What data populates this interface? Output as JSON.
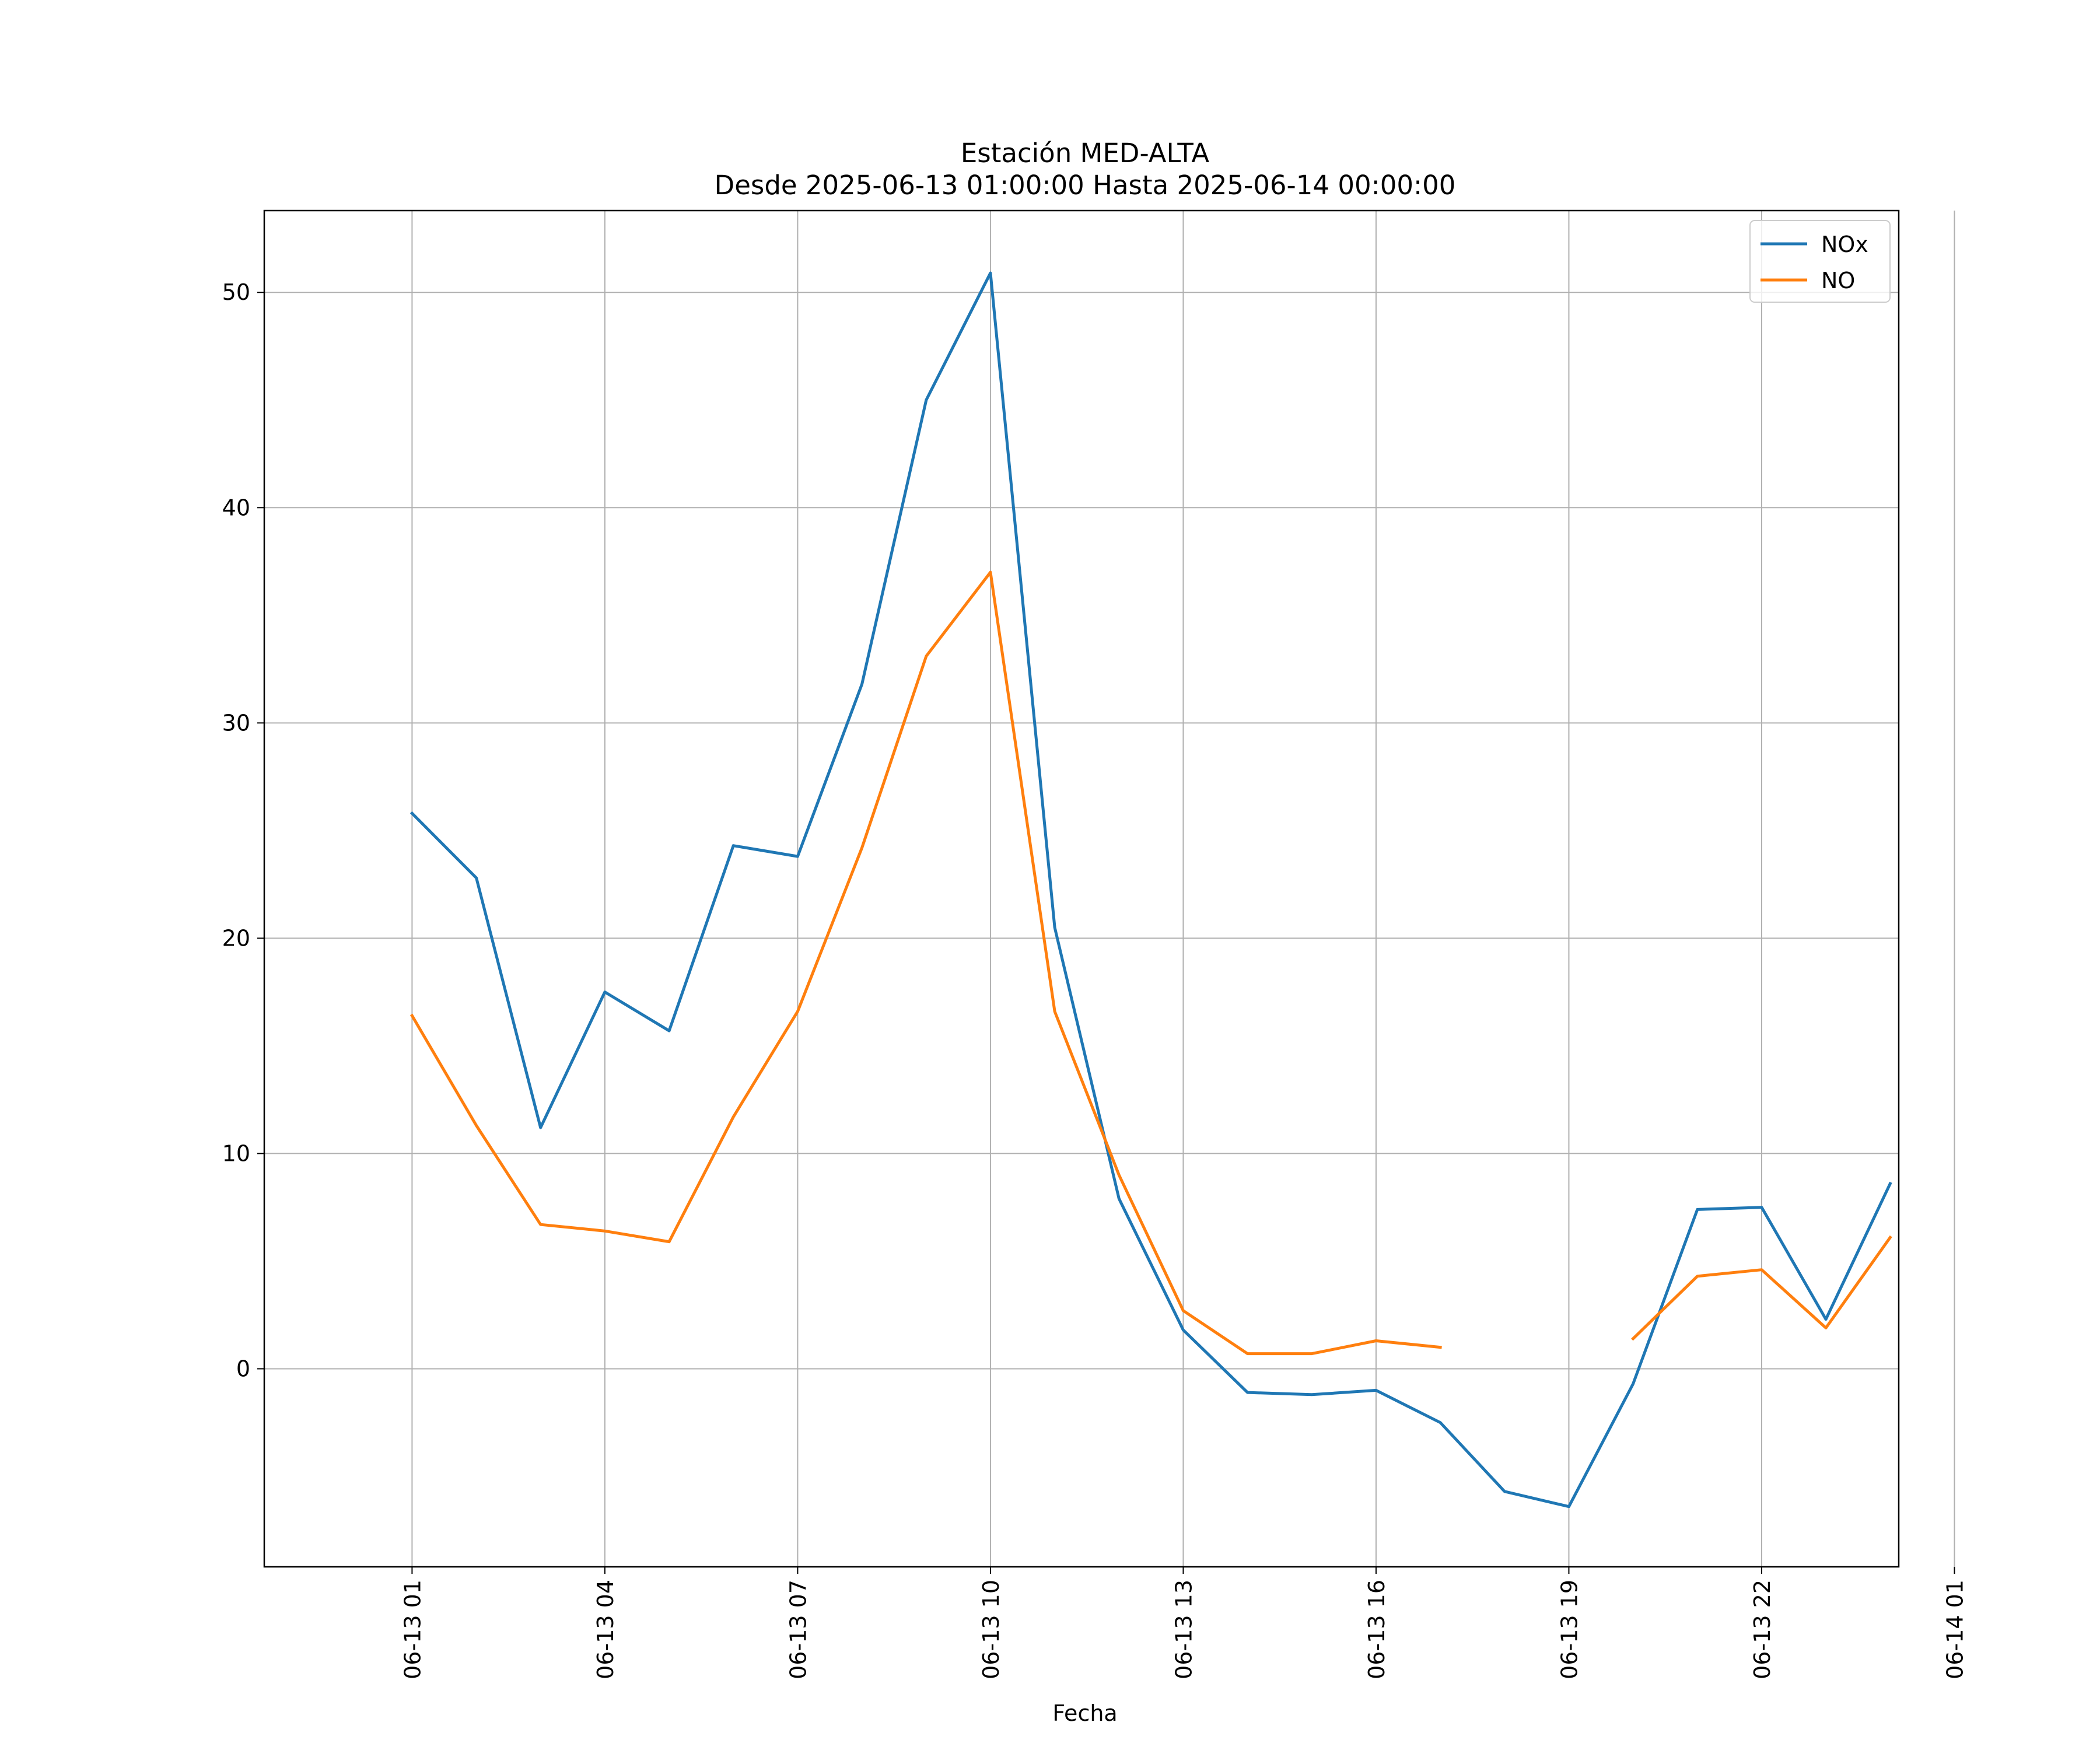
{
  "chart_data": {
    "type": "line",
    "title": "Estación MED-ALTA",
    "subtitle": "Desde 2025-06-13 01:00:00 Hasta 2025-06-14 00:00:00",
    "xlabel": "Fecha",
    "ylabel": "",
    "x": [
      "2025-06-13 01:00",
      "2025-06-13 02:00",
      "2025-06-13 03:00",
      "2025-06-13 04:00",
      "2025-06-13 05:00",
      "2025-06-13 06:00",
      "2025-06-13 07:00",
      "2025-06-13 08:00",
      "2025-06-13 09:00",
      "2025-06-13 10:00",
      "2025-06-13 11:00",
      "2025-06-13 12:00",
      "2025-06-13 13:00",
      "2025-06-13 14:00",
      "2025-06-13 15:00",
      "2025-06-13 16:00",
      "2025-06-13 17:00",
      "2025-06-13 18:00",
      "2025-06-13 19:00",
      "2025-06-13 20:00",
      "2025-06-13 21:00",
      "2025-06-13 22:00",
      "2025-06-13 23:00",
      "2025-06-14 00:00"
    ],
    "series": [
      {
        "name": "NOx",
        "color": "#1f77b4",
        "values": [
          25.8,
          22.8,
          11.2,
          17.5,
          15.7,
          24.3,
          23.8,
          31.8,
          45.0,
          50.9,
          20.5,
          7.9,
          1.8,
          -1.1,
          -1.2,
          -1.0,
          -2.5,
          -5.7,
          -6.4,
          -0.7,
          7.4,
          7.5,
          2.3,
          8.6
        ]
      },
      {
        "name": "NO",
        "color": "#ff7f0e",
        "values": [
          16.4,
          11.3,
          6.7,
          6.4,
          5.9,
          11.7,
          16.6,
          24.2,
          33.1,
          37.0,
          16.6,
          9.0,
          2.7,
          0.7,
          0.7,
          1.3,
          1.0,
          null,
          null,
          1.4,
          4.3,
          4.6,
          1.9,
          6.1
        ]
      }
    ],
    "x_ticks": [
      "06-13 01",
      "06-13 04",
      "06-13 07",
      "06-13 10",
      "06-13 13",
      "06-13 16",
      "06-13 19",
      "06-13 22",
      "06-14 01"
    ],
    "y_ticks": [
      0,
      10,
      20,
      30,
      40,
      50
    ],
    "xlim": [
      "2025-06-12 22:42",
      "2025-06-14 00:08"
    ],
    "ylim": [
      -9.2,
      53.8
    ],
    "grid": true,
    "legend": "top-right"
  }
}
